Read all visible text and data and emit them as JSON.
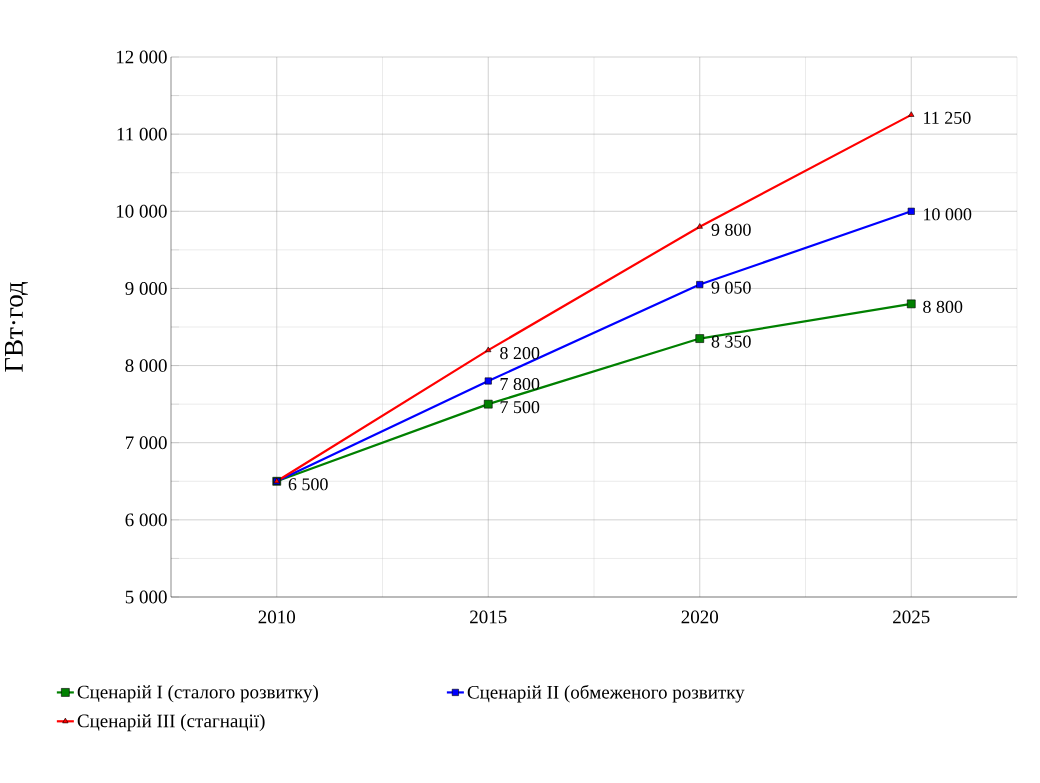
{
  "chart_data": {
    "type": "line",
    "ylabel": "ГВт·год",
    "categories": [
      "2010",
      "2015",
      "2020",
      "2025"
    ],
    "ylim": [
      5000,
      12000
    ],
    "yticks": [
      {
        "value": 5000,
        "label": "5 000"
      },
      {
        "value": 6000,
        "label": "6 000"
      },
      {
        "value": 7000,
        "label": "7 000"
      },
      {
        "value": 8000,
        "label": "8 000"
      },
      {
        "value": 9000,
        "label": "9 000"
      },
      {
        "value": 10000,
        "label": "10 000"
      },
      {
        "value": 11000,
        "label": "11 000"
      },
      {
        "value": 12000,
        "label": "12 000"
      }
    ],
    "grid": true,
    "legend": "bottom",
    "series": [
      {
        "name": "Сценарій I (сталого розвитку)",
        "color": "#008000",
        "marker": "square",
        "values": [
          6500,
          7500,
          8350,
          8800
        ],
        "value_labels": [
          "6 500",
          "7 500",
          "8 350",
          "8 800"
        ]
      },
      {
        "name": "Сценарій II (обмеженого розвитку",
        "color": "#0000ff",
        "marker": "square",
        "values": [
          6500,
          7800,
          9050,
          10000
        ],
        "value_labels": [
          null,
          "7 800",
          "9 050",
          "10 000"
        ]
      },
      {
        "name": "Сценарій III (стагнації)",
        "color": "#ff0000",
        "marker": "triangle",
        "values": [
          6500,
          8200,
          9800,
          11250
        ],
        "value_labels": [
          null,
          "8 200",
          "9 800",
          "11 250"
        ]
      }
    ]
  }
}
